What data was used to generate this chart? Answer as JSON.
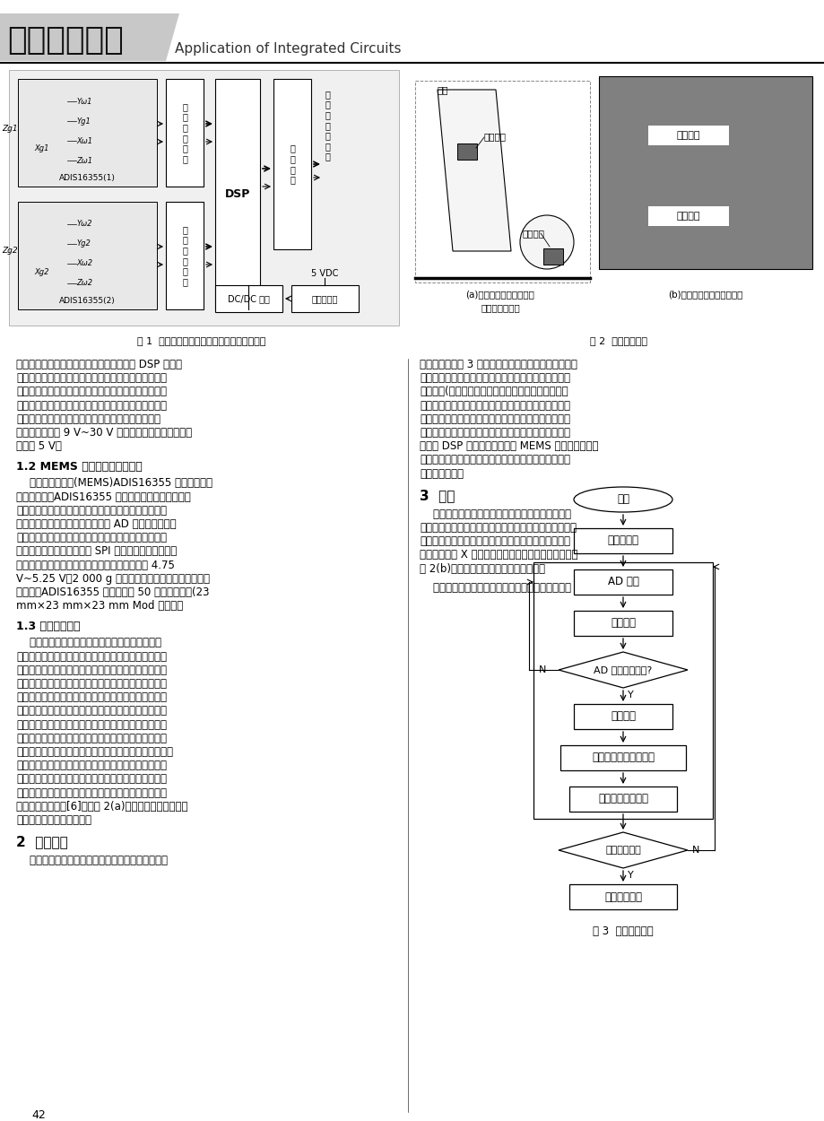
{
  "title_chinese": "集成电路应用",
  "title_english": "Application of Integrated Circuits",
  "page_number": "42",
  "background_color": "#ffffff",
  "header_bg_color": "#c8c8c8",
  "fig1_caption": "图 1  基于陀螺仪传感器的汽车姿态测量系统图",
  "fig2_caption": "图 2  传感器的安装",
  "fig3_caption": "图 3  倾角检测过程",
  "section_1_2_title": "1.2 MEMS 加速度传感器的选择",
  "section_1_3_title": "1.3 差分测量方法",
  "section_2_title": "2  软件设计",
  "section_3_title": "3  实验",
  "fig2a_sub_caption_line1": "(a)传感器在油门踏板上的",
  "fig2a_sub_caption_line2": "差分安装原理图",
  "fig2b_sub_caption": "(b)传感器在实车上的安装图",
  "para0": "出信号的可靠传输；信号处理及传输模块由 DSP 构成核\n心器件，实现在姿态和动态加速度变化的条件下，精确\n测量运动机构的倾角变化，完成信号的数字滤波、角速\n度变化量积分为角度变化量的运算、差分处理及串行输\n出等工作；供电电源采用汽车充电发电机和车载蓄电\n池，供电电压在 9 V~30 V 之间，系统设备使用的电源\n电压为 5 V。",
  "para1": "    本文采用微机械(MEMS)ADIS16355 陀螺仪进行动\n态角度测量。ADIS16355 陀螺仪是一款多轴运动传感\n器，它高效地将三轴陀螺与三轴加速度计相结合，以测\n量所有六自由度。该传感器集成了 AD 公司微机械和混\n合信息处理技术，是一个高度集成的解决方案，提供校\n准后的数字惯性感应；一个 SPI 接口和简单输出注册结\n构形成了简单的系统接口和编程；单电源操作在 4.75\nV~5.25 V；2 000 g 冲击承受力。与其他现成惯性传感\n器相比，ADIS16355 精度提高了 50 倍，易于集成(23\nmm×23 mm×23 mm Mod 封装）。",
  "para2": "    通过将两个姿态传感器探头分别设置在被测物体\n和该被测物体所处的运动载体上，两姿态传感器在初始\n状态姿态相同，其安装位置应尽量靠近，使两传感器近\n似处于一个刚体中。此时不论检测载体（汽车）是否运\n动，两个姿态传感器探头输出的检测信号大小相等，差\n模信号接近为零。当检测装置工作时，两个三轴姿态传\n感器同时提取被测物和载体相对地面的三维运动信号，\n两组信号通过微处理器的数据融合及处理，屏蔽共有的\n振动，转动慢量，姿态变化等共模信号，保留被测物体相\n对运动载体角度或锥角变化的差模信号，进而得到被测\n物体相对运动载体的姿态变化量。该方法避开了两参照\n系数据转换的繁琐数字计算，具有电路简单、信号采集\n处理速度快的特点[6]。如图 2(a)所示，为传感器在油门\n踏板上的差分安装原理图。",
  "para3": "    检测系统的软件包括数据采集和数据处理两部分，",
  "para_right1": "软件流程图如图 3 所示。按照安装动态倾角检测装置，\n通过两个模块同时提取被测物体和动态载体上四组三维\n检测信号(两组角速度信号和两组加速度信号）。这四\n组三维电压模拟量的采集信号经过模拟数据处理模块，\n屏蔽共有的振动，转动慢量和姿态变化等共模信号，保\n留被测物体相对运动载体锥角变化的差模信号，该检测\n信号经 DSP 的运算处理，完成 MEMS 陀螺仪传感器输\n出的检测信号与对应角度量的转换，实现被测物相对载\n体倾角的测量。",
  "para_right2": "    按照差分测量的要求，将静止模块粘贴于固定支架\n上，将运动模块固定于离合器，刹车和油门踏板上（两模\n块与刚性架构间均用减振胶和海绵做减振材料），安装\n时使两个模块 X 轴处于测量灵敏度最高的测量位置，如\n图 2(b)所示为传感器在实车上的安装图。",
  "para_right3": "    在实车上进行实车实验，刻意让车体产生最大幅度"
}
